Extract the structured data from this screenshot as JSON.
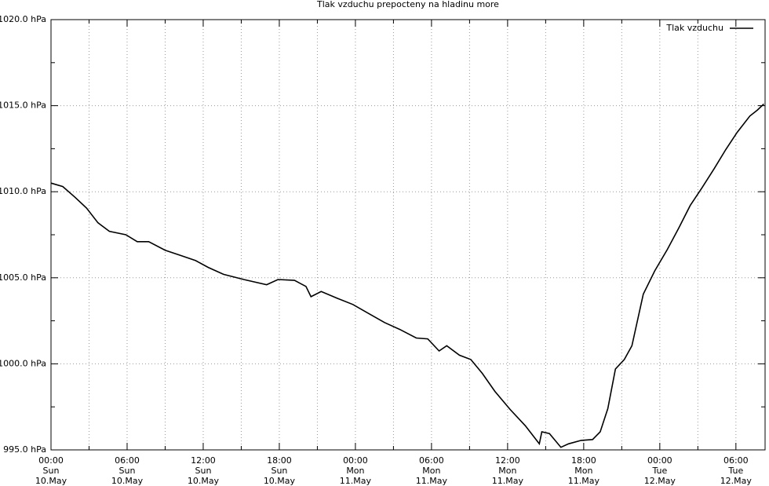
{
  "chart_data": {
    "type": "line",
    "title": "Tlak vzduchu prepocteny na hladinu more",
    "x": [
      0,
      0.93,
      1.86,
      2.8,
      3.7,
      4.6,
      5.9,
      6.8,
      7.7,
      9.0,
      10.2,
      11.4,
      12.4,
      13.6,
      15.2,
      17.0,
      17.9,
      19.2,
      20.1,
      20.5,
      21.3,
      22.6,
      23.8,
      25.1,
      26.3,
      27.5,
      28.8,
      29.7,
      30.6,
      31.2,
      32.2,
      33.1,
      34.0,
      35.0,
      36.2,
      37.4,
      38.5,
      38.7,
      39.3,
      40.2,
      40.8,
      41.8,
      42.7,
      43.3,
      43.9,
      44.5,
      45.2,
      45.8,
      46.7,
      47.6,
      48.6,
      49.5,
      50.4,
      51.3,
      52.3,
      53.2,
      54.1,
      55.1,
      55.7,
      56.2
    ],
    "series": [
      {
        "name": "Tlak vzduchu",
        "color": "#000000",
        "values": [
          1010.5,
          1010.3,
          1009.7,
          1009.05,
          1008.2,
          1007.7,
          1007.5,
          1007.1,
          1007.1,
          1006.6,
          1006.3,
          1006.0,
          1005.6,
          1005.2,
          1004.9,
          1004.6,
          1004.9,
          1004.85,
          1004.5,
          1003.9,
          1004.2,
          1003.8,
          1003.45,
          1002.9,
          1002.4,
          1002.0,
          1001.5,
          1001.45,
          1000.75,
          1001.05,
          1000.5,
          1000.25,
          999.45,
          998.4,
          997.35,
          996.4,
          995.35,
          996.05,
          995.95,
          995.15,
          995.35,
          995.55,
          995.6,
          996.05,
          997.4,
          999.7,
          1000.25,
          1001.05,
          1004.05,
          1005.4,
          1006.65,
          1007.9,
          1009.2,
          1010.2,
          1011.35,
          1012.45,
          1013.45,
          1014.4,
          1014.75,
          1015.1
        ]
      }
    ],
    "xlim": [
      0,
      56.3
    ],
    "xticks": [
      {
        "value": 0,
        "label": [
          "00:00",
          "Sun",
          "10.May"
        ]
      },
      {
        "value": 6,
        "label": [
          "06:00",
          "Sun",
          "10.May"
        ]
      },
      {
        "value": 12,
        "label": [
          "12:00",
          "Sun",
          "10.May"
        ]
      },
      {
        "value": 18,
        "label": [
          "18:00",
          "Sun",
          "10.May"
        ]
      },
      {
        "value": 24,
        "label": [
          "00:00",
          "Mon",
          "11.May"
        ]
      },
      {
        "value": 30,
        "label": [
          "06:00",
          "Mon",
          "11.May"
        ]
      },
      {
        "value": 36,
        "label": [
          "12:00",
          "Mon",
          "11.May"
        ]
      },
      {
        "value": 42,
        "label": [
          "18:00",
          "Mon",
          "11.May"
        ]
      },
      {
        "value": 48,
        "label": [
          "00:00",
          "Tue",
          "12.May"
        ]
      },
      {
        "value": 54,
        "label": [
          "06:00",
          "Tue",
          "12.May"
        ]
      }
    ],
    "xminorticks": [
      3,
      9,
      15,
      21,
      27,
      33,
      39,
      45,
      51
    ],
    "ylim": [
      995,
      1020
    ],
    "yticks": [
      {
        "value": 995,
        "label": "995.0 hPa"
      },
      {
        "value": 1000,
        "label": "1000.0 hPa"
      },
      {
        "value": 1005,
        "label": "1005.0 hPa"
      },
      {
        "value": 1010,
        "label": "1010.0 hPa"
      },
      {
        "value": 1015,
        "label": "1015.0 hPa"
      },
      {
        "value": 1020,
        "label": "1020.0 hPa"
      }
    ],
    "yminorticks": [
      997.5,
      1002.5,
      1007.5,
      1012.5,
      1017.5
    ],
    "grid": true,
    "legend": "top-right"
  }
}
